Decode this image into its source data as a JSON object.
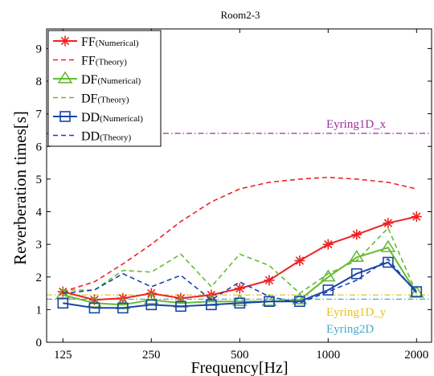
{
  "chart_data": {
    "type": "line",
    "title": "Room2-3",
    "xlabel": "Frequency[Hz]",
    "ylabel": "Reverberation times[s]",
    "xscale": "log",
    "xlim": [
      110,
      2250
    ],
    "ylim": [
      0,
      9.6
    ],
    "xticks": [
      125,
      250,
      500,
      1000,
      2000
    ],
    "xtick_labels": [
      "125",
      "250",
      "500",
      "1000",
      "2000"
    ],
    "yticks": [
      0,
      1,
      2,
      3,
      4,
      5,
      6,
      7,
      8,
      9
    ],
    "ytick_labels": [
      "0",
      "1",
      "2",
      "3",
      "4",
      "5",
      "6",
      "7",
      "8",
      "9"
    ],
    "grid": false,
    "legend_position": "top-left",
    "series": [
      {
        "name": "FF",
        "name_sub": "(Numerical)",
        "color": "#ee2222",
        "dash": "solid",
        "marker": "asterisk",
        "x": [
          125,
          160,
          200,
          250,
          315,
          400,
          500,
          630,
          800,
          1000,
          1250,
          1600,
          2000
        ],
        "y": [
          1.55,
          1.3,
          1.35,
          1.5,
          1.35,
          1.45,
          1.65,
          1.9,
          2.5,
          3.0,
          3.3,
          3.65,
          3.85
        ]
      },
      {
        "name": "FF",
        "name_sub": "(Theory)",
        "color": "#ee2222",
        "dash": "dashed",
        "marker": "none",
        "x": [
          125,
          160,
          200,
          250,
          315,
          400,
          500,
          630,
          800,
          1000,
          1250,
          1600,
          2000
        ],
        "y": [
          1.55,
          1.85,
          2.4,
          3.0,
          3.7,
          4.3,
          4.7,
          4.9,
          5.0,
          5.05,
          5.0,
          4.9,
          4.7
        ]
      },
      {
        "name": "DF",
        "name_sub": "(Numerical)",
        "color": "#66bb33",
        "dash": "solid",
        "marker": "triangle",
        "x": [
          125,
          160,
          200,
          250,
          315,
          400,
          500,
          630,
          800,
          1000,
          1250,
          1600,
          2000
        ],
        "y": [
          1.45,
          1.2,
          1.15,
          1.3,
          1.2,
          1.25,
          1.25,
          1.25,
          1.3,
          2.0,
          2.6,
          2.9,
          1.5
        ]
      },
      {
        "name": "DF",
        "name_sub": "(Theory)",
        "color": "#66bb33",
        "dash": "dashed",
        "marker": "none",
        "x": [
          125,
          160,
          200,
          250,
          315,
          400,
          500,
          630,
          800,
          1000,
          1250,
          1600,
          2000
        ],
        "y": [
          1.6,
          1.6,
          2.2,
          2.15,
          2.7,
          1.7,
          2.7,
          2.35,
          1.5,
          2.1,
          2.5,
          3.5,
          1.5
        ]
      },
      {
        "name": "DD",
        "name_sub": "(Numerical)",
        "color": "#1a44aa",
        "dash": "solid",
        "marker": "square",
        "x": [
          125,
          160,
          200,
          250,
          315,
          400,
          500,
          630,
          800,
          1000,
          1250,
          1600,
          2000
        ],
        "y": [
          1.2,
          1.05,
          1.05,
          1.15,
          1.1,
          1.15,
          1.2,
          1.25,
          1.25,
          1.6,
          2.1,
          2.45,
          1.55
        ]
      },
      {
        "name": "DD",
        "name_sub": "(Theory)",
        "color": "#1a44aa",
        "dash": "dashed",
        "marker": "none",
        "x": [
          125,
          160,
          200,
          250,
          315,
          400,
          500,
          630,
          800,
          1000,
          1250,
          1600,
          2000
        ],
        "y": [
          1.5,
          1.6,
          2.1,
          1.7,
          2.05,
          1.3,
          1.85,
          1.4,
          1.2,
          1.55,
          1.9,
          2.55,
          1.5
        ]
      }
    ],
    "reference_lines": [
      {
        "label": "Eyring1D_x",
        "y": 6.4,
        "color": "#993399",
        "style": "dash-dot"
      },
      {
        "label": "Eyring1D_y",
        "y": 1.45,
        "color": "#e8c020",
        "style": "dash-dot"
      },
      {
        "label": "Eyring2D",
        "y": 1.32,
        "color": "#44aacc",
        "style": "dash-dot"
      }
    ]
  }
}
